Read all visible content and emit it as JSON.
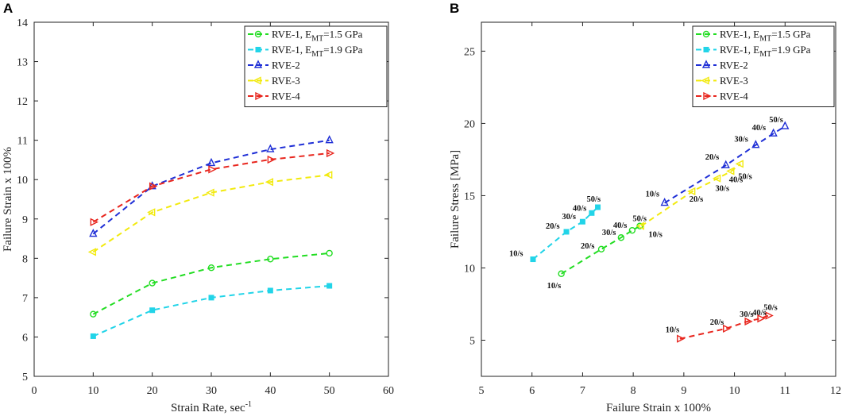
{
  "chart_data": [
    {
      "panel": "A",
      "type": "line",
      "title": "",
      "xlabel": "Strain Rate, sec",
      "xlabel_sup": "-1",
      "ylabel": "Failure Strain x 100%",
      "xlim": [
        0,
        60
      ],
      "ylim": [
        5,
        14
      ],
      "xticks": [
        0,
        10,
        20,
        30,
        40,
        50,
        60
      ],
      "yticks": [
        5,
        6,
        7,
        8,
        9,
        10,
        11,
        12,
        13,
        14
      ],
      "grid": false,
      "legend_position": "top-right",
      "series": [
        {
          "name": "RVE-1, E",
          "name_sub": "MT",
          "name_tail": "=1.5 GPa",
          "color": "#22dd22",
          "marker": "circle",
          "x": [
            10,
            20,
            30,
            40,
            50
          ],
          "y": [
            6.58,
            7.37,
            7.76,
            7.98,
            8.13
          ]
        },
        {
          "name": "RVE-1, E",
          "name_sub": "MT",
          "name_tail": "=1.9 GPa",
          "color": "#22d4e8",
          "marker": "square",
          "x": [
            10,
            20,
            30,
            40,
            50
          ],
          "y": [
            6.02,
            6.68,
            7.0,
            7.18,
            7.3
          ]
        },
        {
          "name": "RVE-2",
          "color": "#1f2fd6",
          "marker": "triangle-up",
          "x": [
            10,
            20,
            30,
            40,
            50
          ],
          "y": [
            8.62,
            9.83,
            10.42,
            10.77,
            11.0
          ]
        },
        {
          "name": "RVE-3",
          "color": "#f2ea0e",
          "marker": "triangle-left",
          "x": [
            10,
            20,
            30,
            40,
            50
          ],
          "y": [
            8.16,
            9.17,
            9.67,
            9.94,
            10.12
          ]
        },
        {
          "name": "RVE-4",
          "color": "#e8261e",
          "marker": "triangle-right",
          "x": [
            10,
            20,
            30,
            40,
            50
          ],
          "y": [
            8.92,
            9.83,
            10.26,
            10.51,
            10.67
          ]
        }
      ]
    },
    {
      "panel": "B",
      "type": "line",
      "title": "",
      "xlabel": "Failure Strain x 100%",
      "ylabel": "Failure Stress [MPa]",
      "xlim": [
        5,
        12
      ],
      "ylim": [
        2.5,
        27
      ],
      "xticks": [
        5,
        6,
        7,
        8,
        9,
        10,
        11,
        12
      ],
      "yticks": [
        5,
        10,
        15,
        20,
        25
      ],
      "grid": false,
      "legend_position": "top-right",
      "series": [
        {
          "name": "RVE-1, E",
          "name_sub": "MT",
          "name_tail": "=1.5 GPa",
          "color": "#22dd22",
          "marker": "circle",
          "x": [
            6.58,
            7.37,
            7.76,
            7.98,
            8.13
          ],
          "y": [
            9.6,
            11.3,
            12.1,
            12.6,
            12.9
          ],
          "point_labels": [
            "10/s",
            "20/s",
            "30/s",
            "40/s",
            "50/s"
          ],
          "label_offsets": [
            [
              -18,
              18
            ],
            [
              -26,
              -1
            ],
            [
              -24,
              -3
            ],
            [
              -24,
              -3
            ],
            [
              -9,
              -6
            ]
          ]
        },
        {
          "name": "RVE-1, E",
          "name_sub": "MT",
          "name_tail": "=1.9 GPa",
          "color": "#22d4e8",
          "marker": "square",
          "x": [
            6.02,
            6.68,
            7.0,
            7.18,
            7.3
          ],
          "y": [
            10.6,
            12.5,
            13.2,
            13.8,
            14.2
          ],
          "point_labels": [
            "10/s",
            "20/s",
            "30/s",
            "40/s",
            "50/s"
          ],
          "label_offsets": [
            [
              -30,
              -4
            ],
            [
              -26,
              -4
            ],
            [
              -26,
              -3
            ],
            [
              -24,
              -3
            ],
            [
              -14,
              -7
            ]
          ]
        },
        {
          "name": "RVE-2",
          "color": "#1f2fd6",
          "marker": "triangle-up",
          "x": [
            8.62,
            9.83,
            10.42,
            10.77,
            11.0
          ],
          "y": [
            14.5,
            17.1,
            18.5,
            19.3,
            19.8
          ],
          "point_labels": [
            "10/s",
            "20/s",
            "30/s",
            "40/s",
            "50/s"
          ],
          "label_offsets": [
            [
              -24,
              -8
            ],
            [
              -26,
              -7
            ],
            [
              -27,
              -4
            ],
            [
              -27,
              -4
            ],
            [
              -20,
              -5
            ]
          ]
        },
        {
          "name": "RVE-3",
          "color": "#f2ea0e",
          "marker": "triangle-left",
          "x": [
            8.16,
            9.17,
            9.67,
            9.94,
            10.12
          ],
          "y": [
            12.9,
            15.3,
            16.2,
            16.7,
            17.2
          ],
          "point_labels": [
            "10/s",
            "20/s",
            "30/s",
            "40/s",
            "50/s"
          ],
          "label_offsets": [
            [
              9,
              14
            ],
            [
              -4,
              13
            ],
            [
              -3,
              16
            ],
            [
              -3,
              14
            ],
            [
              -3,
              19
            ]
          ]
        },
        {
          "name": "RVE-4",
          "color": "#e8261e",
          "marker": "triangle-right",
          "x": [
            8.92,
            9.83,
            10.26,
            10.51,
            10.67
          ],
          "y": [
            5.1,
            5.8,
            6.3,
            6.5,
            6.7
          ],
          "point_labels": [
            "10/s",
            "20/s",
            "30/s",
            "40/s",
            "50/s"
          ],
          "label_offsets": [
            [
              -18,
              -8
            ],
            [
              -20,
              -5
            ],
            [
              -10,
              -6
            ],
            [
              -10,
              -4
            ],
            [
              -6,
              -7
            ]
          ]
        }
      ]
    }
  ]
}
